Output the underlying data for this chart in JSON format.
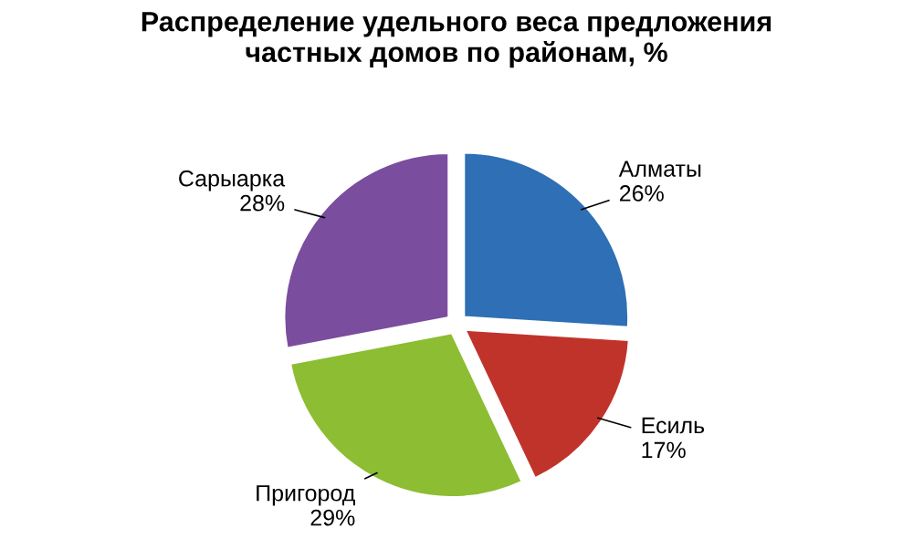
{
  "chart_data": {
    "type": "pie",
    "title": "Распределение удельного веса предложения\nчастных домов по районам, %",
    "categories": [
      "Алматы",
      "Есиль",
      "Пригород",
      "Сарыарка"
    ],
    "values": [
      26,
      17,
      29,
      28
    ],
    "value_labels": [
      "26%",
      "17%",
      "29%",
      "28%"
    ],
    "colors": [
      "#2e6fb5",
      "#c0332b",
      "#8cbd32",
      "#7a4d9e"
    ],
    "legend": false
  }
}
